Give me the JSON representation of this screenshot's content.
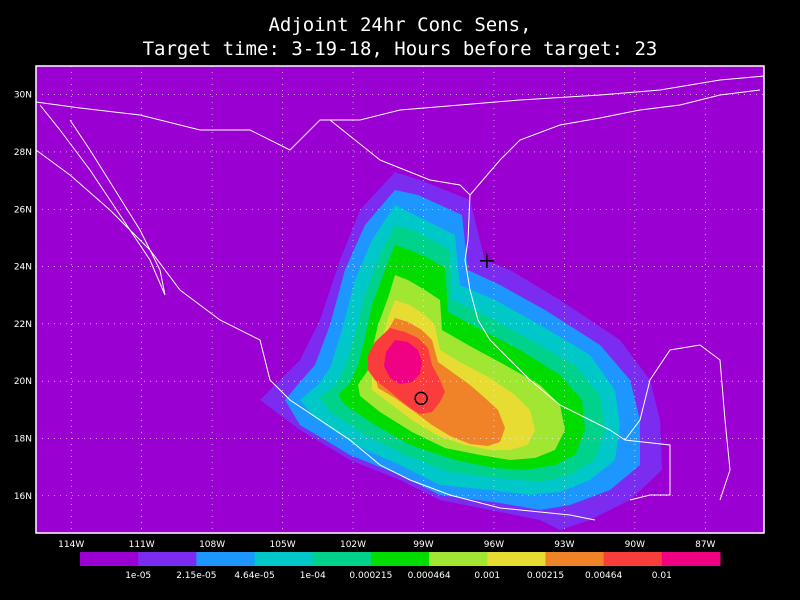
{
  "title": {
    "line1": "Adjoint 24hr Conc Sens,",
    "line2": "Target time: 3-19-18, Hours before target: 23"
  },
  "map": {
    "lon_range": [
      -115.5,
      -84.5
    ],
    "lat_range": [
      14.7,
      31
    ],
    "background_color": "#9b00d2",
    "boundary_color": "#ffffff",
    "lon_labels": [
      "114W",
      "111W",
      "108W",
      "105W",
      "102W",
      "99W",
      "96W",
      "93W",
      "90W",
      "87W"
    ],
    "lon_values": [
      -114,
      -111,
      -108,
      -105,
      -102,
      -99,
      -96,
      -93,
      -90,
      -87
    ],
    "lat_labels": [
      "30N",
      "28N",
      "26N",
      "24N",
      "22N",
      "20N",
      "18N",
      "16N"
    ],
    "lat_values": [
      30,
      28,
      26,
      24,
      22,
      20,
      18,
      16
    ],
    "markers": {
      "plus": {
        "lon": -96.3,
        "lat": 24.2,
        "symbol": "+"
      },
      "circle": {
        "lon": -99.1,
        "lat": 19.4,
        "symbol": "o"
      }
    }
  },
  "colorbar": {
    "colors": [
      "#9b00d2",
      "#7b2cf0",
      "#1e96ff",
      "#00c8c8",
      "#00d28c",
      "#00dc00",
      "#a0e632",
      "#e6dc32",
      "#f08228",
      "#fa3c3c",
      "#f00082"
    ],
    "labels": [
      "1e-05",
      "2.15e-05",
      "4.64e-05",
      "1e-04",
      "0.000215",
      "0.000464",
      "0.001",
      "0.00215",
      "0.00464",
      "0.01"
    ]
  }
}
